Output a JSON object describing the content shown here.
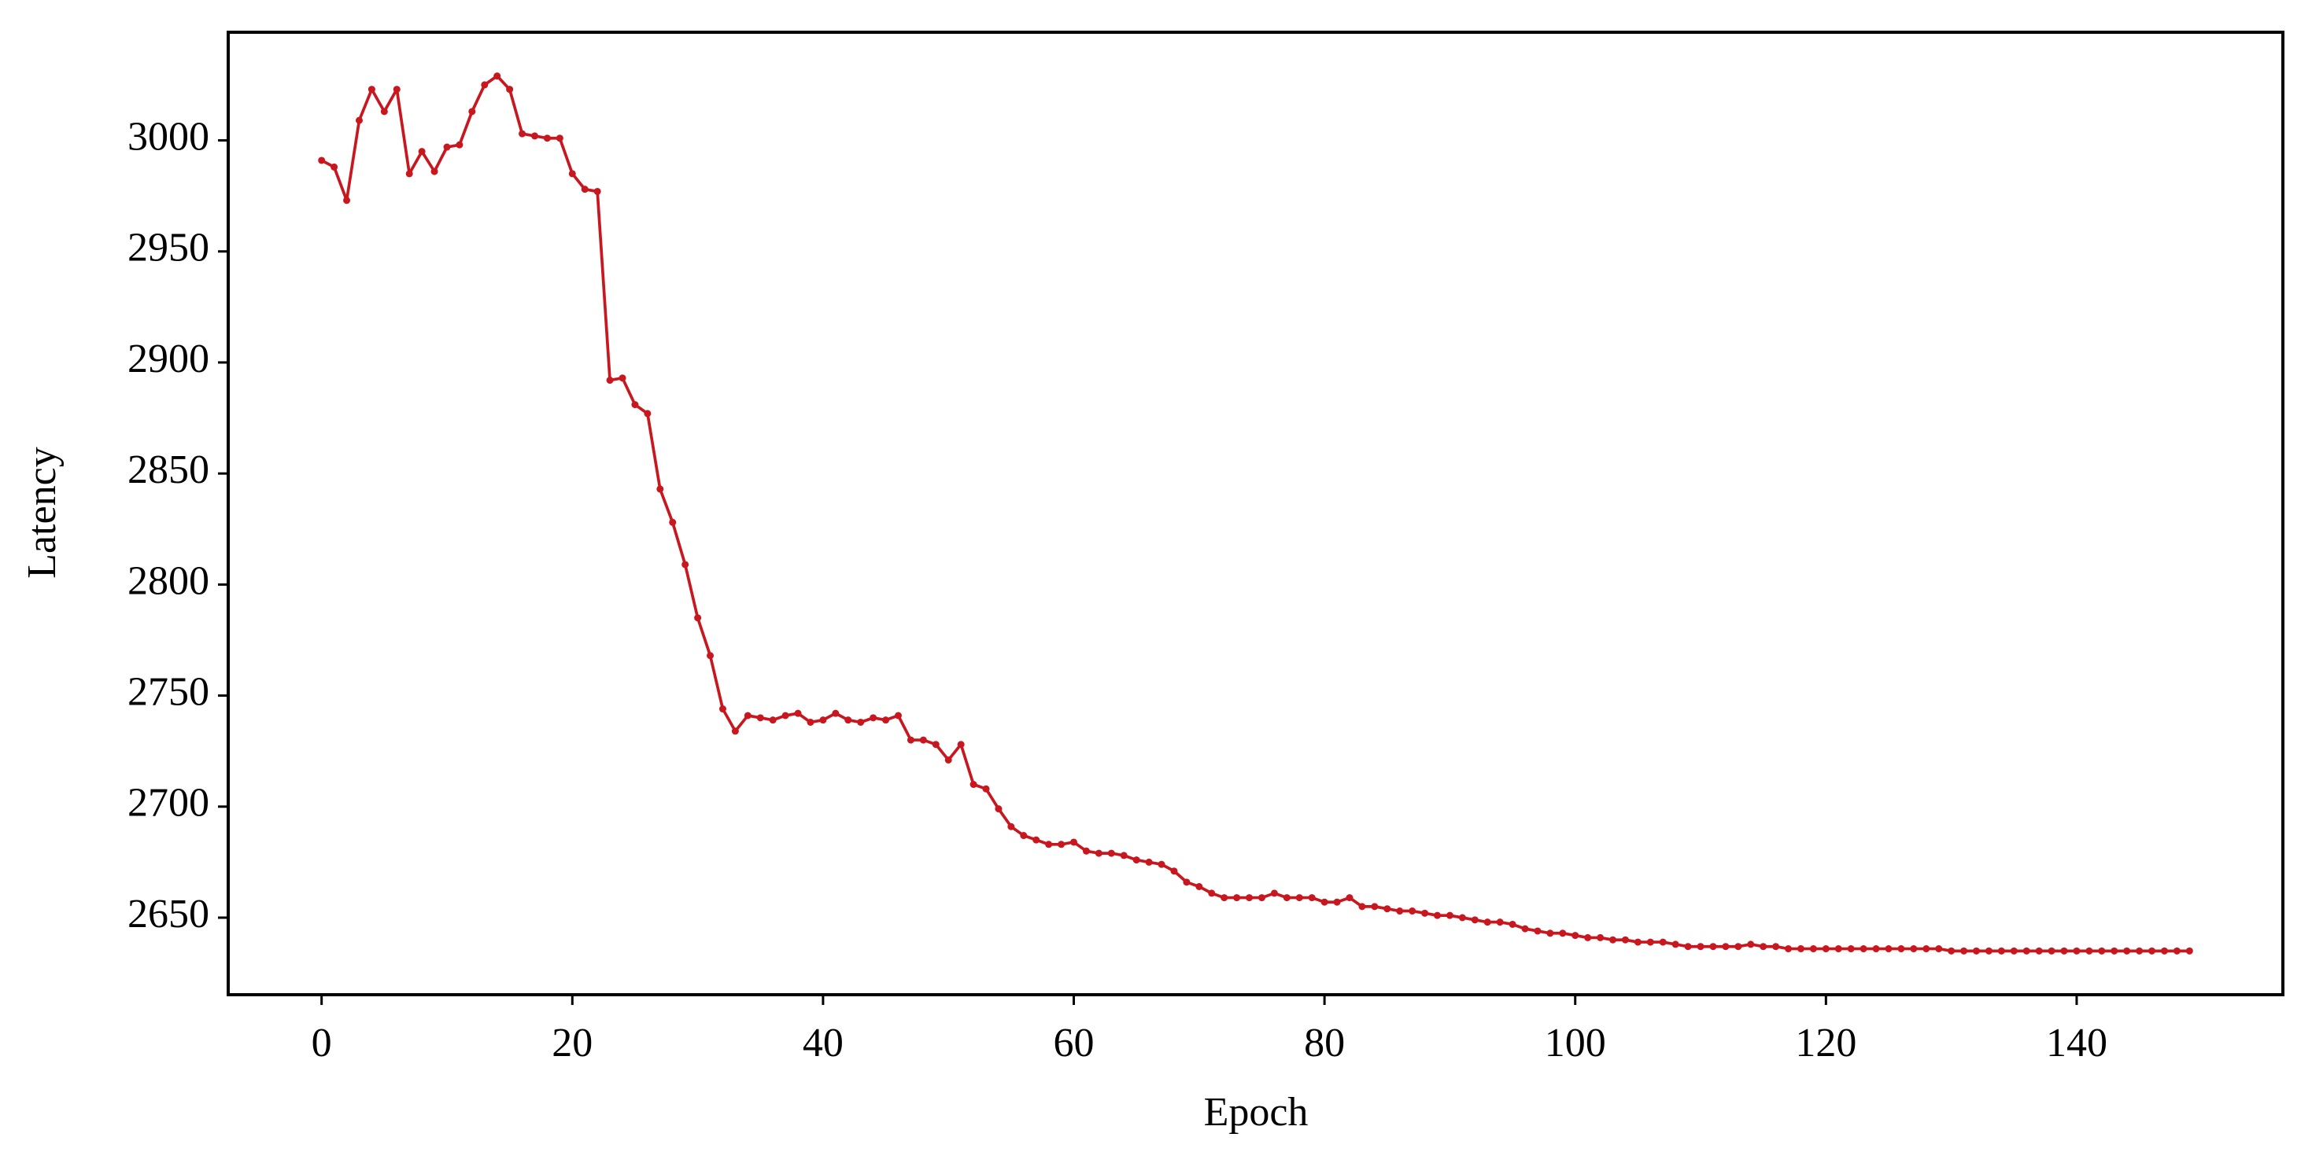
{
  "chart_data": {
    "type": "line",
    "x_label": "Epoch",
    "y_label": "Latency",
    "x": [
      0,
      1,
      2,
      3,
      4,
      5,
      6,
      7,
      8,
      9,
      10,
      11,
      12,
      13,
      14,
      15,
      16,
      17,
      18,
      19,
      20,
      21,
      22,
      23,
      24,
      25,
      26,
      27,
      28,
      29,
      30,
      31,
      32,
      33,
      34,
      35,
      36,
      37,
      38,
      39,
      40,
      41,
      42,
      43,
      44,
      45,
      46,
      47,
      48,
      49,
      50,
      51,
      52,
      53,
      54,
      55,
      56,
      57,
      58,
      59,
      60,
      61,
      62,
      63,
      64,
      65,
      66,
      67,
      68,
      69,
      70,
      71,
      72,
      73,
      74,
      75,
      76,
      77,
      78,
      79,
      80,
      81,
      82,
      83,
      84,
      85,
      86,
      87,
      88,
      89,
      90,
      91,
      92,
      93,
      94,
      95,
      96,
      97,
      98,
      99,
      100,
      101,
      102,
      103,
      104,
      105,
      106,
      107,
      108,
      109,
      110,
      111,
      112,
      113,
      114,
      115,
      116,
      117,
      118,
      119,
      120,
      121,
      122,
      123,
      124,
      125,
      126,
      127,
      128,
      129,
      130,
      131,
      132,
      133,
      134,
      135,
      136,
      137,
      138,
      139,
      140,
      141,
      142,
      143,
      144,
      145,
      146,
      147,
      148,
      149
    ],
    "series": [
      {
        "name": "Latency",
        "color": "#c8171e",
        "values": [
          2991,
          2988,
          2973,
          3009,
          3023,
          3013,
          3023,
          2985,
          2995,
          2986,
          2997,
          2998,
          3013,
          3025,
          3029,
          3023,
          3003,
          3002,
          3001,
          3001,
          2985,
          2978,
          2977,
          2892,
          2893,
          2881,
          2877,
          2843,
          2828,
          2809,
          2785,
          2768,
          2744,
          2734,
          2741,
          2740,
          2739,
          2741,
          2742,
          2738,
          2739,
          2742,
          2739,
          2738,
          2740,
          2739,
          2741,
          2730,
          2730,
          2728,
          2721,
          2728,
          2710,
          2708,
          2699,
          2691,
          2687,
          2685,
          2683,
          2683,
          2684,
          2680,
          2679,
          2679,
          2678,
          2676,
          2675,
          2674,
          2671,
          2666,
          2664,
          2661,
          2659,
          2659,
          2659,
          2659,
          2661,
          2659,
          2659,
          2659,
          2657,
          2657,
          2659,
          2655,
          2655,
          2654,
          2653,
          2653,
          2652,
          2651,
          2651,
          2650,
          2649,
          2648,
          2648,
          2647,
          2645,
          2644,
          2643,
          2643,
          2642,
          2641,
          2641,
          2640,
          2640,
          2639,
          2639,
          2639,
          2638,
          2637,
          2637,
          2637,
          2637,
          2637,
          2638,
          2637,
          2637,
          2636,
          2636,
          2636,
          2636,
          2636,
          2636,
          2636,
          2636,
          2636,
          2636,
          2636,
          2636,
          2636,
          2635,
          2635,
          2635,
          2635,
          2635,
          2635,
          2635,
          2635,
          2635,
          2635,
          2635,
          2635,
          2635,
          2635,
          2635,
          2635,
          2635,
          2635,
          2635,
          2635
        ]
      }
    ],
    "xlim": [
      -7.45,
      156.45
    ],
    "ylim": [
      2615.3,
      3048.7
    ],
    "xticks": [
      0,
      20,
      40,
      60,
      80,
      100,
      120,
      140
    ],
    "yticks": [
      2650,
      2700,
      2750,
      2800,
      2850,
      2900,
      2950,
      3000
    ],
    "grid": false,
    "markers": true
  }
}
